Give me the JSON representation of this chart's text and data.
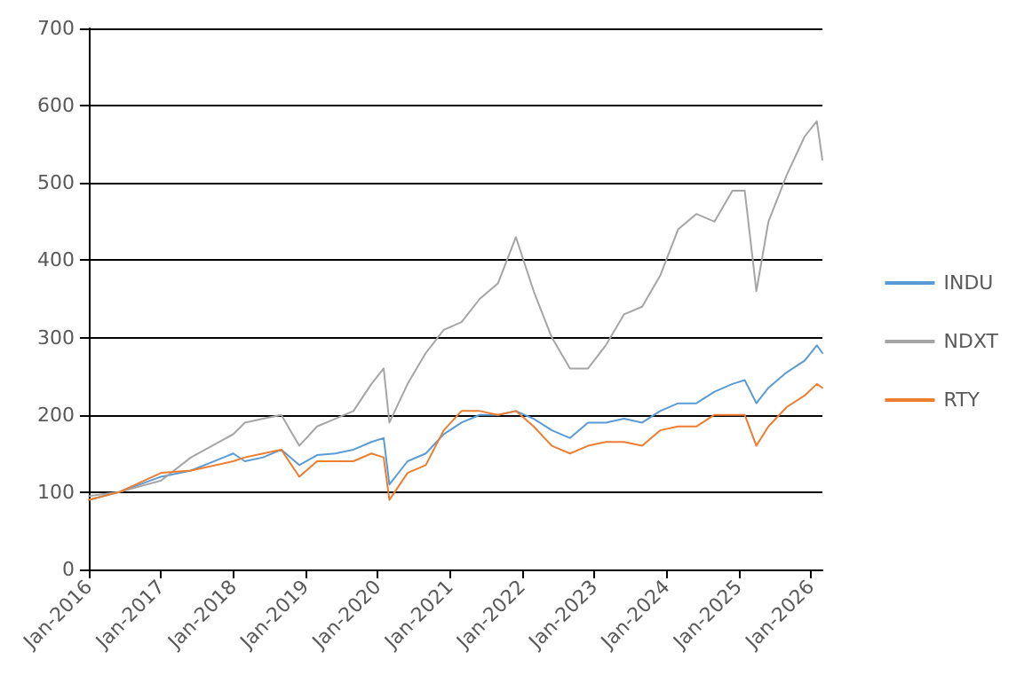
{
  "chart_data": {
    "type": "line",
    "x": [
      "2016-01",
      "2016-06",
      "2017-01",
      "2017-06",
      "2018-01",
      "2018-03",
      "2018-06",
      "2018-09",
      "2018-12",
      "2019-03",
      "2019-06",
      "2019-09",
      "2019-12",
      "2020-02",
      "2020-03",
      "2020-06",
      "2020-09",
      "2020-12",
      "2021-03",
      "2021-06",
      "2021-09",
      "2021-12",
      "2022-03",
      "2022-06",
      "2022-09",
      "2022-12",
      "2023-03",
      "2023-06",
      "2023-09",
      "2023-12",
      "2024-03",
      "2024-06",
      "2024-09",
      "2024-12",
      "2025-02",
      "2025-04",
      "2025-06",
      "2025-09",
      "2025-12",
      "2026-02",
      "2026-03"
    ],
    "series": [
      {
        "name": "INDU",
        "color": "#5b9bd5",
        "values": [
          90,
          100,
          120,
          128,
          150,
          140,
          145,
          155,
          135,
          148,
          150,
          155,
          165,
          170,
          110,
          140,
          150,
          175,
          190,
          200,
          200,
          205,
          195,
          180,
          170,
          190,
          190,
          195,
          190,
          205,
          215,
          215,
          230,
          240,
          245,
          215,
          235,
          255,
          270,
          290,
          280
        ]
      },
      {
        "name": "NDXT",
        "color": "#a5a5a5",
        "values": [
          95,
          100,
          115,
          145,
          175,
          190,
          195,
          200,
          160,
          185,
          195,
          205,
          240,
          260,
          190,
          240,
          280,
          310,
          320,
          350,
          370,
          430,
          360,
          300,
          260,
          260,
          290,
          330,
          340,
          380,
          440,
          460,
          450,
          490,
          490,
          360,
          450,
          510,
          560,
          580,
          530
        ]
      },
      {
        "name": "RTY",
        "color": "#ed7d31",
        "values": [
          90,
          100,
          125,
          128,
          140,
          145,
          150,
          155,
          120,
          140,
          140,
          140,
          150,
          145,
          90,
          125,
          135,
          180,
          205,
          205,
          200,
          205,
          185,
          160,
          150,
          160,
          165,
          165,
          160,
          180,
          185,
          185,
          200,
          200,
          200,
          160,
          185,
          210,
          225,
          240,
          235
        ]
      }
    ],
    "xlim": [
      "2016-01",
      "2026-03"
    ],
    "xticks": [
      {
        "value": "2016-01",
        "label": "Jan-2016"
      },
      {
        "value": "2017-01",
        "label": "Jan-2017"
      },
      {
        "value": "2018-01",
        "label": "Jan-2018"
      },
      {
        "value": "2019-01",
        "label": "Jan-2019"
      },
      {
        "value": "2020-01",
        "label": "Jan-2020"
      },
      {
        "value": "2021-01",
        "label": "Jan-2021"
      },
      {
        "value": "2022-01",
        "label": "Jan-2022"
      },
      {
        "value": "2023-01",
        "label": "Jan-2023"
      },
      {
        "value": "2024-01",
        "label": "Jan-2024"
      },
      {
        "value": "2025-01",
        "label": "Jan-2025"
      },
      {
        "value": "2026-01",
        "label": "Jan-2026"
      }
    ],
    "ylim": [
      0,
      700
    ],
    "yticks": [
      0,
      100,
      200,
      300,
      400,
      500,
      600,
      700
    ],
    "grid": "y",
    "legend": "right",
    "marker": "none",
    "line_style": "solid"
  }
}
